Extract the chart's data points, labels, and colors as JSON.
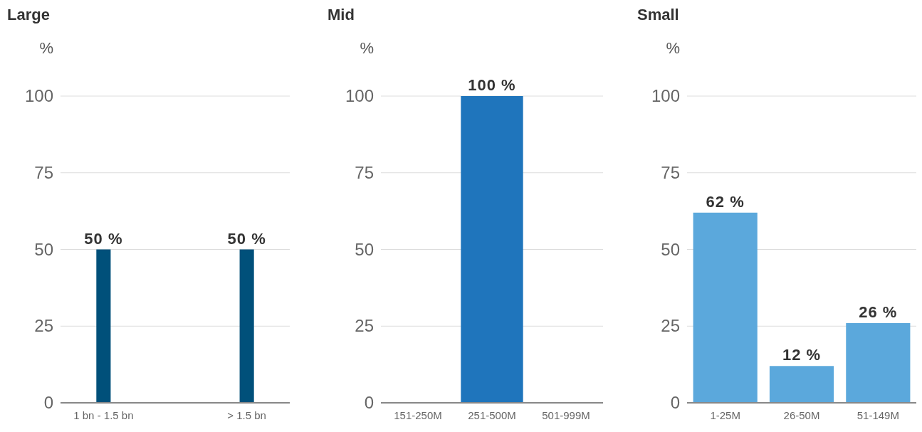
{
  "chart_data": [
    {
      "type": "bar",
      "title": "Large",
      "ylabel": "%",
      "categories": [
        "1 bn - 1.5 bn",
        "> 1.5 bn"
      ],
      "values": [
        50,
        50
      ],
      "color": "#00507a",
      "value_labels": [
        "50 %",
        "50 %"
      ],
      "ylim": [
        0,
        100
      ],
      "yticks": [
        0,
        25,
        50,
        75,
        100
      ],
      "grid": "y"
    },
    {
      "type": "bar",
      "title": "Mid",
      "ylabel": "%",
      "categories": [
        "151-250M",
        "251-500M",
        "501-999M"
      ],
      "values": [
        0,
        100,
        0
      ],
      "color": "#1f75bc",
      "value_labels": [
        null,
        "100 %",
        null
      ],
      "ylim": [
        0,
        100
      ],
      "yticks": [
        0,
        25,
        50,
        75,
        100
      ],
      "grid": "y"
    },
    {
      "type": "bar",
      "title": "Small",
      "ylabel": "%",
      "categories": [
        "1-25M",
        "26-50M",
        "51-149M"
      ],
      "values": [
        62,
        12,
        26
      ],
      "color": "#5ba8dc",
      "value_labels": [
        "62 %",
        "12 %",
        "26 %"
      ],
      "ylim": [
        0,
        100
      ],
      "yticks": [
        0,
        25,
        50,
        75,
        100
      ],
      "grid": "y"
    }
  ]
}
